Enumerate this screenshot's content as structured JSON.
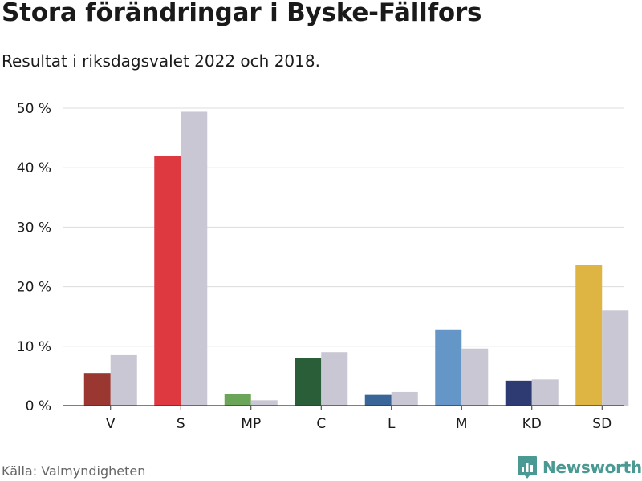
{
  "title": "Stora förändringar i Byske-Fällfors",
  "subtitle": "Resultat i riksdagsvalet 2022 och 2018.",
  "source": "Källa: Valmyndigheten",
  "brand": {
    "name": "Newsworthy",
    "color": "#4a9a93",
    "icon": "bar-chart-speech-bubble-icon"
  },
  "chart_data": {
    "type": "bar",
    "categories": [
      "V",
      "S",
      "MP",
      "C",
      "L",
      "M",
      "KD",
      "SD"
    ],
    "series": [
      {
        "values": [
          5.5,
          42.0,
          2.0,
          8.0,
          1.8,
          12.7,
          4.2,
          23.6
        ],
        "colors": [
          "#9b3731",
          "#de3840",
          "#6ba557",
          "#2a5e39",
          "#3a6598",
          "#6497c8",
          "#2d3b72",
          "#deb542"
        ]
      },
      {
        "values": [
          8.5,
          49.4,
          0.9,
          9.0,
          2.3,
          9.6,
          4.4,
          16.0
        ],
        "color": "#c8c7d3"
      }
    ],
    "yticks": [
      0,
      10,
      20,
      30,
      40,
      50
    ],
    "ytick_labels": [
      "0 %",
      "10 %",
      "20 %",
      "30 %",
      "40 %",
      "50 %"
    ],
    "ylim": [
      0,
      50
    ],
    "grid": true,
    "legend": "none"
  }
}
